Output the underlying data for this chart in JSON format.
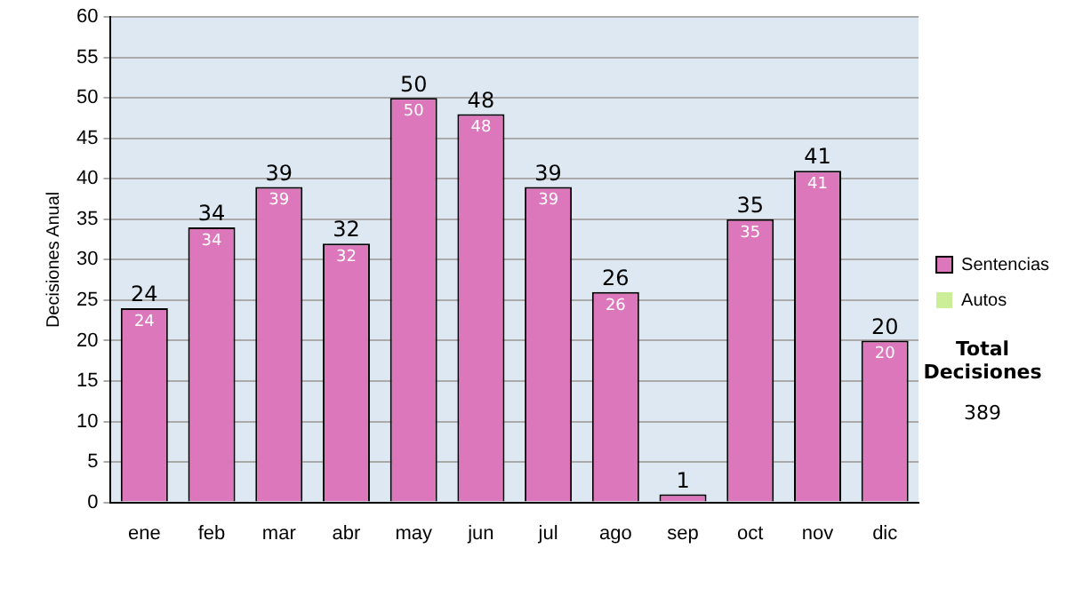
{
  "chart_data": {
    "type": "bar",
    "stacked": true,
    "ylabel": "Decisiones Anual",
    "categories": [
      "ene",
      "feb",
      "mar",
      "abr",
      "may",
      "jun",
      "jul",
      "ago",
      "sep",
      "oct",
      "nov",
      "dic"
    ],
    "series": [
      {
        "name": "Sentencias",
        "color": "#dd77bb",
        "values": [
          24,
          34,
          39,
          32,
          50,
          48,
          39,
          26,
          1,
          35,
          41,
          20
        ],
        "value_labels": [
          "24",
          "34",
          "39",
          "32",
          "50",
          "48",
          "39",
          "26",
          null,
          "35",
          "41",
          "20"
        ]
      },
      {
        "name": "Autos",
        "color": "#ccee99",
        "values": [
          0,
          0,
          0,
          0,
          0,
          0,
          0,
          0,
          0,
          0,
          0,
          0
        ]
      }
    ],
    "ylim": [
      0,
      60
    ],
    "yticks": [
      0,
      5,
      10,
      15,
      20,
      25,
      30,
      35,
      40,
      45,
      50,
      55,
      60
    ],
    "grid": "y",
    "legend": "right",
    "totals": [
      "24",
      "34",
      "39",
      "32",
      "50",
      "48",
      "39",
      "26",
      "1",
      "35",
      "41",
      "20"
    ],
    "annotations": [
      "Total Decisiones",
      "389"
    ]
  }
}
